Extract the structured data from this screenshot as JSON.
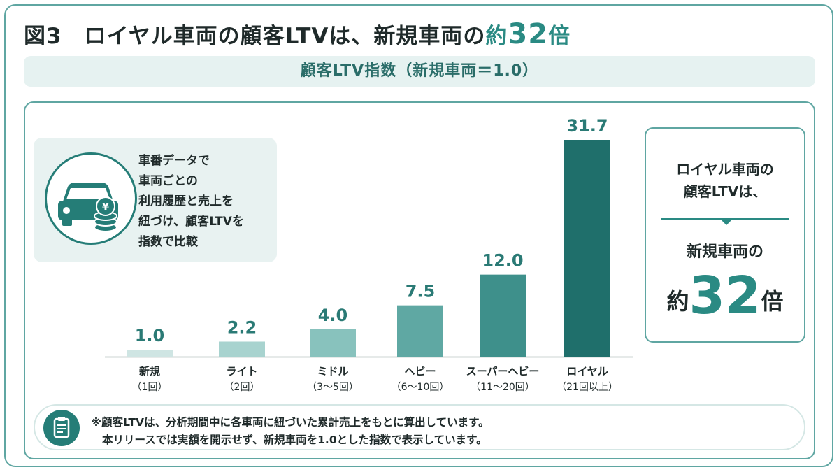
{
  "title": {
    "prefix": "図3　ロイヤル車両の顧客LTVは、新規車両の",
    "accent_pre": "約",
    "accent_num": "32",
    "accent_suf": "倍"
  },
  "subtitle": "顧客LTV指数（新規車両＝1.0）",
  "info": {
    "icon": "car-coin-icon",
    "lines": [
      "車番データで",
      "車両ごとの",
      "利用履歴と売上を",
      "紐づけ、顧客LTVを",
      "指数で比較"
    ]
  },
  "callout": {
    "line1": "ロイヤル車両の",
    "line2": "顧客LTVは、",
    "line3": "新規車両の",
    "pre": "約",
    "num": "32",
    "suf": "倍"
  },
  "note": {
    "icon": "clipboard-icon",
    "line1": "※顧客LTVは、分析期間中に各車両に紐づいた累計売上をもとに算出しています。",
    "line2": "本リリースでは実額を開示せず、新規車両を1.0とした指数で表示しています。"
  },
  "colors": {
    "accent": "#2a8a83",
    "bars": [
      "#cfe5e3",
      "#a8d3cf",
      "#88c2bd",
      "#5fa8a3",
      "#3e908b",
      "#1f6f6b"
    ]
  },
  "chart_data": {
    "type": "bar",
    "categories": [
      {
        "name": "新規",
        "sub": "（1回）"
      },
      {
        "name": "ライト",
        "sub": "（2回）"
      },
      {
        "name": "ミドル",
        "sub": "（3〜5回）"
      },
      {
        "name": "ヘビー",
        "sub": "（6〜10回）"
      },
      {
        "name": "スーパーヘビー",
        "sub": "（11〜20回）"
      },
      {
        "name": "ロイヤル",
        "sub": "（21回以上）"
      }
    ],
    "values": [
      1.0,
      2.2,
      4.0,
      7.5,
      12.0,
      31.7
    ],
    "value_labels": [
      "1.0",
      "2.2",
      "4.0",
      "7.5",
      "12.0",
      "31.7"
    ],
    "title": "顧客LTV指数（新規車両＝1.0）",
    "xlabel": "",
    "ylabel": "",
    "ylim": [
      0,
      31.7
    ],
    "grid": false,
    "legend": "none"
  }
}
